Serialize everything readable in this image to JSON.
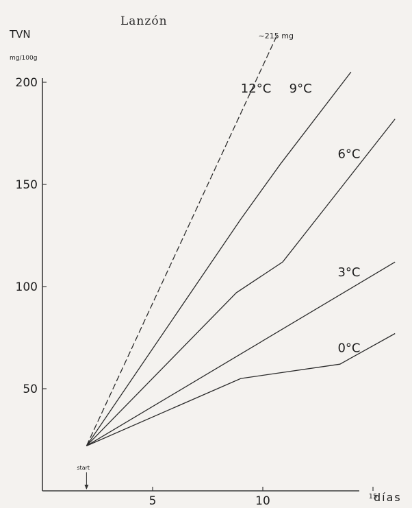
{
  "chart_data": {
    "type": "line",
    "title": "Lanzón",
    "ylabel": "TVN",
    "yunit": "mg/100g",
    "xlabel": "días",
    "xlim": [
      0,
      15
    ],
    "ylim": [
      0,
      200
    ],
    "yticks": [
      50,
      100,
      150,
      200
    ],
    "xticks": [
      5,
      10,
      15
    ],
    "grid": false,
    "start_label": "start",
    "start_x": 2,
    "series": [
      {
        "name": "12°C",
        "dashed": true,
        "x": [
          2,
          10.3
        ],
        "y": [
          22,
          215
        ],
        "end_label": "215 mg"
      },
      {
        "name": "9°C",
        "x": [
          2,
          9,
          10.8,
          14
        ],
        "y": [
          22,
          133,
          160,
          205
        ]
      },
      {
        "name": "6°C",
        "x": [
          2,
          8.8,
          10.9,
          16
        ],
        "y": [
          22,
          97,
          112,
          182
        ]
      },
      {
        "name": "3°C",
        "x": [
          2,
          16
        ],
        "y": [
          22,
          112
        ]
      },
      {
        "name": "0°C",
        "x": [
          2,
          9,
          13.5,
          16
        ],
        "y": [
          22,
          55,
          62,
          77
        ]
      }
    ]
  }
}
